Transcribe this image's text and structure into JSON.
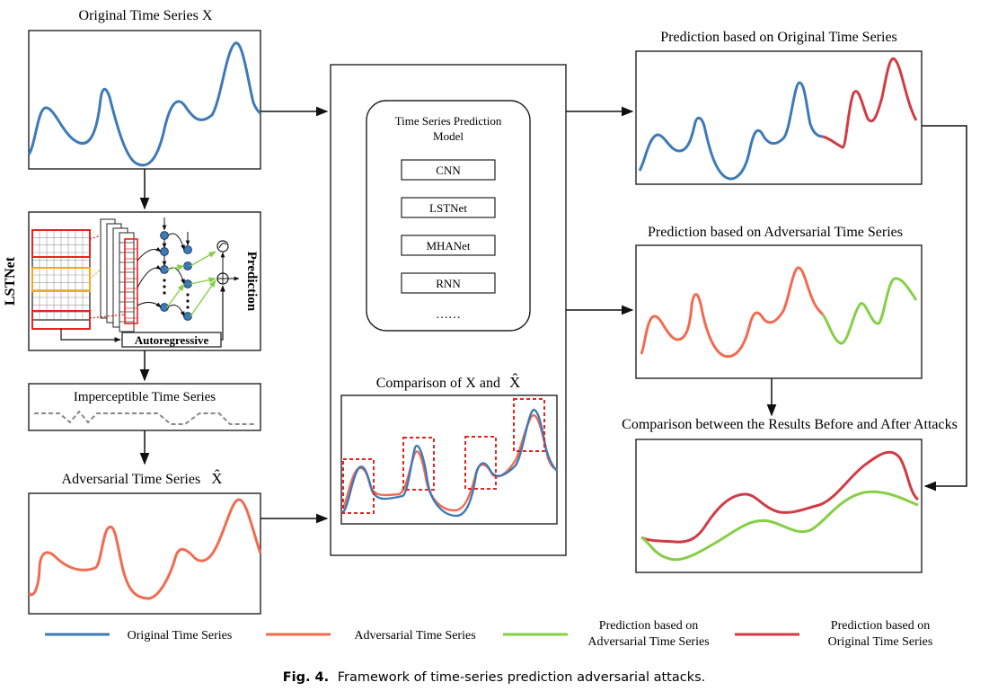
{
  "panels": {
    "original": {
      "title": "Original Time Series X"
    },
    "lstnet": {
      "side_label": "LSTNet",
      "autoregressive_label": "Autoregressive",
      "prediction_label": "Prediction"
    },
    "imperceptible": {
      "title": "Imperceptible Time Series"
    },
    "adversarial": {
      "title": "Adversarial Time Series",
      "symbol": "X̂"
    },
    "model": {
      "title_line1": "Time Series Prediction",
      "title_line2": "Model",
      "models": [
        "CNN",
        "LSTNet",
        "MHANet",
        "RNN"
      ],
      "more": "……"
    },
    "comparison_xxhat": {
      "title": "Comparison of X and",
      "symbol": "X̂"
    },
    "pred_original": {
      "title": "Prediction based on Original Time Series"
    },
    "pred_adversarial": {
      "title": "Prediction based on Adversarial Time Series"
    },
    "comparison_results": {
      "title": "Comparison between the Results Before and After Attacks"
    }
  },
  "legend": {
    "items": [
      {
        "line1": "Original Time Series",
        "line2": "",
        "color": "#3d7ab8"
      },
      {
        "line1": "Adversarial  Time Series",
        "line2": "",
        "color": "#f26b4f"
      },
      {
        "line1": "Prediction based on",
        "line2": "Adversarial Time Series",
        "color": "#86cf45"
      },
      {
        "line1": "Prediction based on",
        "line2": "Original Time Series",
        "color": "#d13c44"
      }
    ]
  },
  "caption": {
    "label": "Fig. 4.",
    "text": "Framework of time-series prediction adversarial attacks."
  },
  "colors": {
    "original": "#3d7ab8",
    "adversarial": "#f26b4f",
    "pred_adversarial": "#86cf45",
    "pred_original": "#d13c44",
    "highlight": "#e8231f",
    "lstnet_orange": "#f5a623",
    "imperceptible": "#888888"
  }
}
